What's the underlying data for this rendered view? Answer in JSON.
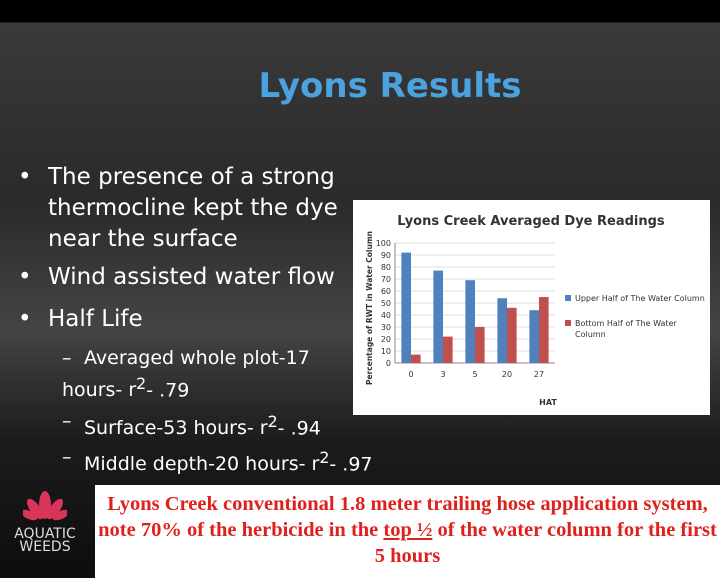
{
  "title": "Lyons Results",
  "bullets": [
    {
      "text": "The presence of a strong thermocline kept the dye near the surface"
    },
    {
      "text": "Wind assisted water flow"
    },
    {
      "text": "Half Life"
    }
  ],
  "sub_bullets": [
    {
      "text": "Averaged whole plot-17 hours- r",
      "sup": "2",
      "rest": "- .79"
    },
    {
      "text": "Surface-53 hours- r",
      "sup": "2",
      "rest": "- .94"
    },
    {
      "text": "Middle depth-20 hours- r",
      "sup": "2",
      "rest": "- .97"
    }
  ],
  "logo": {
    "line1": "AQUATIC",
    "line2": "WEEDS"
  },
  "caption": {
    "before": "Lyons Creek conventional 1.8 meter trailing hose application system, note 70% of the herbicide in the ",
    "underlined": "top ½",
    "after": " of the water column for the first 5 hours"
  },
  "chart_data": {
    "type": "bar",
    "title": "Lyons Creek Averaged Dye Readings",
    "x_label": "HAT",
    "y_label": "Percentage of RWT in Water Column",
    "categories": [
      "0",
      "3",
      "5",
      "20",
      "27"
    ],
    "series": [
      {
        "name": "Upper Half of The Water Column",
        "color": "#4f81bd",
        "values": [
          92,
          77,
          69,
          54,
          44
        ]
      },
      {
        "name": "Bottom Half of The Water Column",
        "color": "#c0504d",
        "values": [
          7,
          22,
          30,
          46,
          55
        ]
      }
    ],
    "ylim": [
      0,
      100
    ],
    "yticks": [
      0,
      10,
      20,
      30,
      40,
      50,
      60,
      70,
      80,
      90,
      100
    ],
    "grid": true
  }
}
